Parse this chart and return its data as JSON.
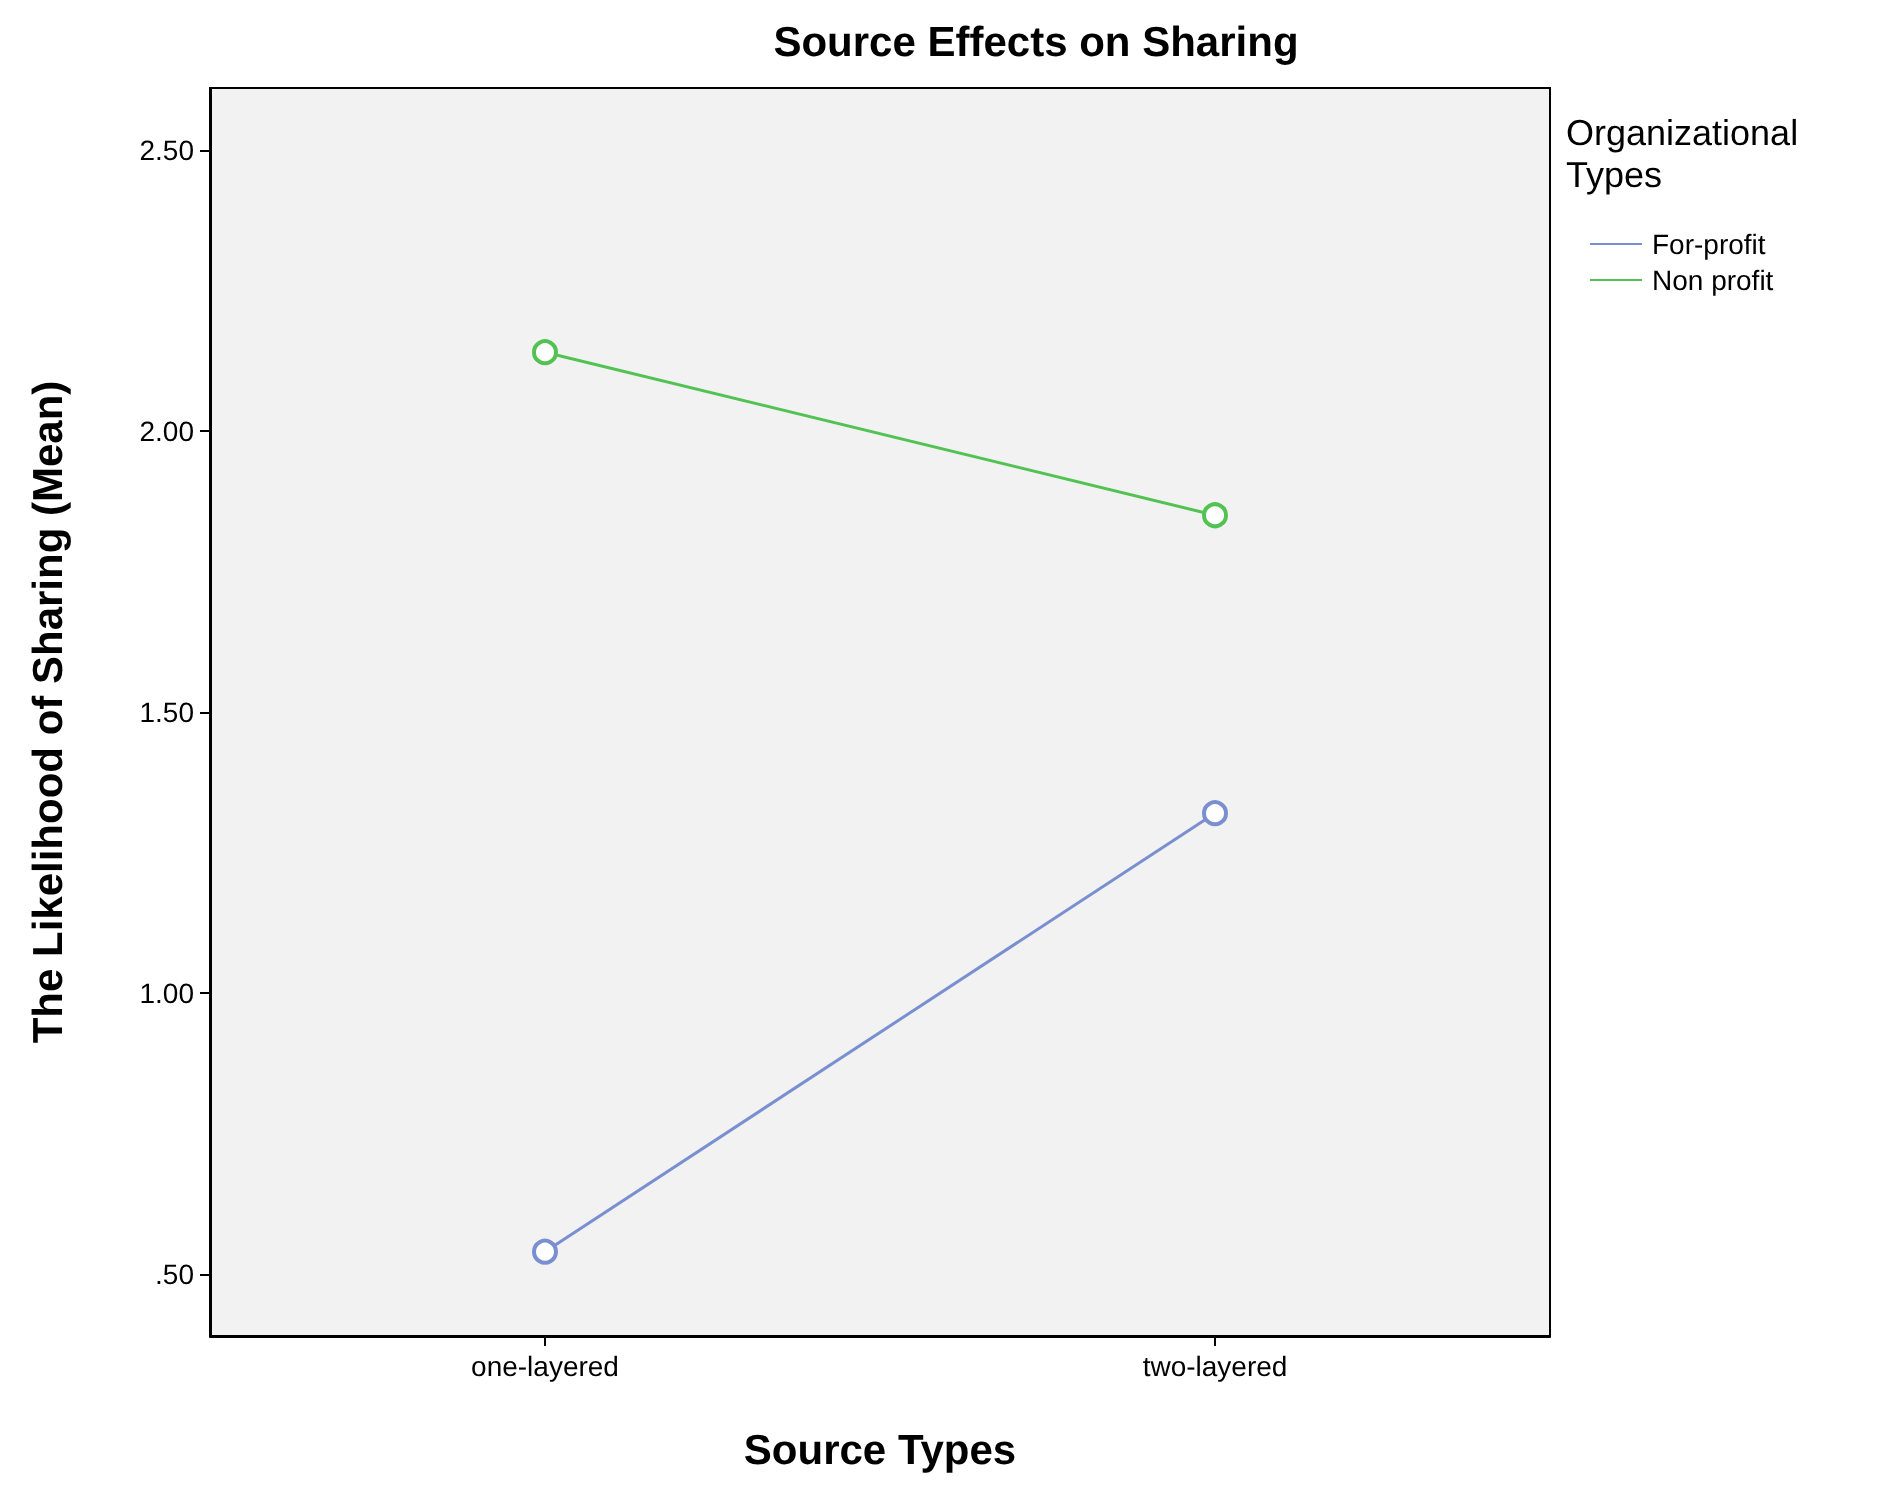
{
  "chart_data": {
    "type": "line",
    "title": "Source Effects on Sharing",
    "xlabel": "Source Types",
    "ylabel": "The Likelihood of Sharing (Mean)",
    "legend_title": "Organizational Types",
    "categories": [
      "one-layered",
      "two-layered"
    ],
    "series": [
      {
        "name": "For-profit",
        "color": "#7a8fd0",
        "values": [
          0.54,
          1.32
        ]
      },
      {
        "name": "Non profit",
        "color": "#52c352",
        "values": [
          2.14,
          1.85
        ]
      }
    ],
    "ylim": [
      0.39,
      2.61
    ],
    "yticks": [
      {
        "value": 0.5,
        "label": ".50"
      },
      {
        "value": 1,
        "label": "1.00"
      },
      {
        "value": 1.5,
        "label": "1.50"
      },
      {
        "value": 2,
        "label": "2.00"
      },
      {
        "value": 2.5,
        "label": "2.50"
      }
    ],
    "grid": false,
    "legend": "top right",
    "marker": "circle",
    "line_style": "solid"
  }
}
